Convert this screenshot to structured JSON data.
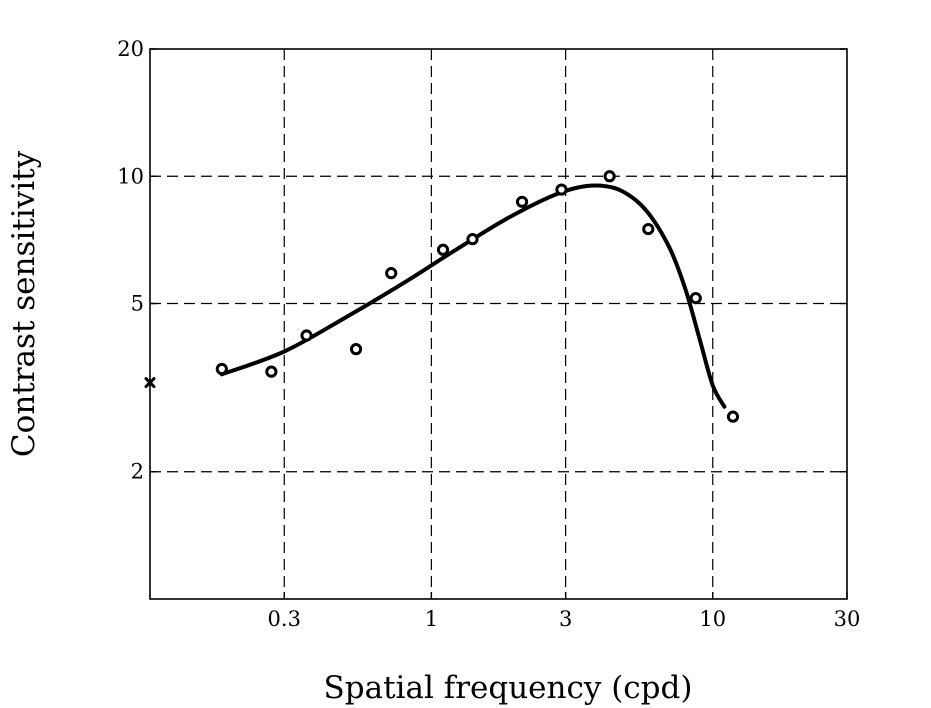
{
  "chart_data": {
    "type": "scatter",
    "title": "",
    "xlabel": "Spatial frequency (cpd)",
    "ylabel": "Contrast sensitivity",
    "x_scale": "log",
    "y_scale": "log",
    "xlim": [
      0.1,
      30
    ],
    "ylim": [
      1.0,
      20
    ],
    "x_ticks": [
      0.3,
      1,
      3,
      10,
      30
    ],
    "x_tick_labels": [
      "0.3",
      "1",
      "3",
      "10",
      "30"
    ],
    "y_ticks": [
      2,
      5,
      10,
      20
    ],
    "y_tick_labels": [
      "2",
      "5",
      "10",
      "20"
    ],
    "grid": true,
    "grid_style": "dashed",
    "series": [
      {
        "marker": "open-circle",
        "x": [
          0.18,
          0.27,
          0.36,
          0.54,
          0.72,
          1.1,
          1.4,
          2.1,
          2.9,
          4.3,
          5.9,
          8.7,
          11.8
        ],
        "y": [
          3.5,
          3.45,
          4.2,
          3.9,
          5.9,
          6.7,
          7.1,
          8.7,
          9.3,
          10.0,
          7.5,
          5.15,
          2.7
        ]
      },
      {
        "marker": "filled-x",
        "x": [
          0.1
        ],
        "y": [
          3.25
        ]
      },
      {
        "style": "solid-line",
        "x": [
          0.18,
          0.3,
          0.5,
          0.8,
          1.2,
          1.8,
          2.6,
          3.3,
          4.0,
          4.8,
          5.8,
          7.0,
          8.0,
          9.0,
          10.0,
          11.0
        ],
        "y": [
          3.4,
          3.85,
          4.65,
          5.6,
          6.65,
          7.85,
          8.9,
          9.4,
          9.5,
          9.2,
          8.3,
          6.8,
          5.4,
          4.1,
          3.2,
          2.85
        ]
      }
    ]
  }
}
